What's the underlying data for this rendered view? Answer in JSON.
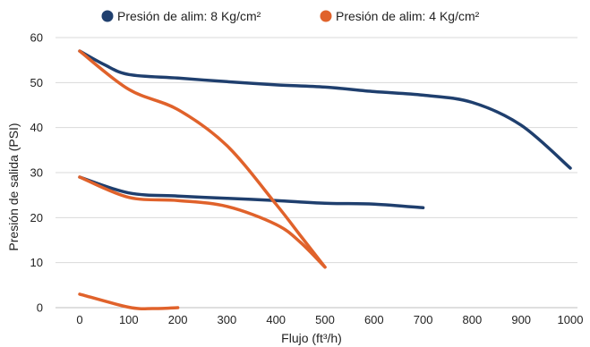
{
  "chart_data": {
    "type": "line",
    "title": "",
    "xlabel": "Flujo (ft³/h)",
    "ylabel": "Presión de salida (PSI)",
    "xlim": [
      0,
      1000
    ],
    "ylim": [
      0,
      60
    ],
    "xticks": [
      "0",
      "100",
      "200",
      "300",
      "400",
      "500",
      "600",
      "700",
      "800",
      "900",
      "1000"
    ],
    "yticks": [
      "0",
      "10",
      "20",
      "30",
      "40",
      "50",
      "60"
    ],
    "grid": "horizontal",
    "legend_position": "top",
    "series": [
      {
        "name": "Presión de alim: 8 Kg/cm²",
        "color": "#1f3f6e",
        "curves": [
          [
            [
              0,
              57
            ],
            [
              50,
              54
            ],
            [
              100,
              51.8
            ],
            [
              200,
              51
            ],
            [
              300,
              50.2
            ],
            [
              400,
              49.5
            ],
            [
              500,
              49
            ],
            [
              600,
              48
            ],
            [
              700,
              47.2
            ],
            [
              800,
              45.6
            ],
            [
              900,
              40.5
            ],
            [
              1000,
              31
            ]
          ],
          [
            [
              0,
              29
            ],
            [
              100,
              25.5
            ],
            [
              200,
              24.8
            ],
            [
              300,
              24.3
            ],
            [
              400,
              23.8
            ],
            [
              500,
              23.2
            ],
            [
              600,
              23
            ],
            [
              700,
              22.2
            ]
          ]
        ]
      },
      {
        "name": "Presión de alim: 4 Kg/cm²",
        "color": "#e0622b",
        "curves": [
          [
            [
              0,
              57
            ],
            [
              100,
              48.5
            ],
            [
              200,
              44
            ],
            [
              300,
              36
            ],
            [
              400,
              23
            ],
            [
              450,
              16
            ],
            [
              500,
              9
            ]
          ],
          [
            [
              0,
              29
            ],
            [
              100,
              24.5
            ],
            [
              200,
              23.8
            ],
            [
              300,
              22.5
            ],
            [
              400,
              18.5
            ],
            [
              450,
              14.5
            ],
            [
              500,
              9
            ]
          ],
          [
            [
              0,
              3
            ],
            [
              100,
              0.1
            ],
            [
              150,
              -0.2
            ],
            [
              200,
              0
            ]
          ]
        ]
      }
    ]
  }
}
